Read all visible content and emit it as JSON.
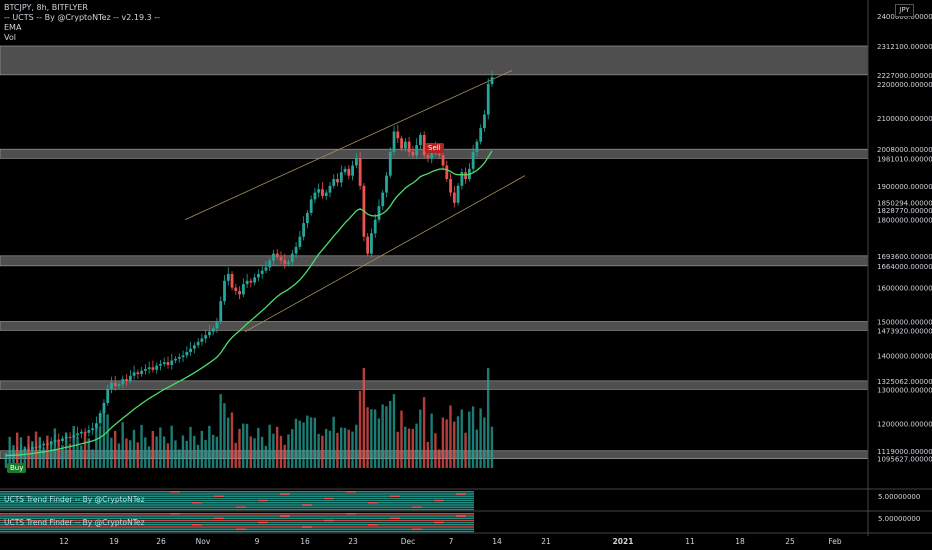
{
  "legend": {
    "symbol": "BTCJPY, 8h, BITFLYER",
    "indicator1": "-- UCTS -- By @CryptoNTez -- v2.19.3 --",
    "indicator2": "EMA",
    "indicator3": "Vol"
  },
  "currency": "JPY",
  "signals": {
    "sell": "Sell",
    "buy": "Buy"
  },
  "panes": [
    {
      "label": "UCTS Trend Finder -- By @CryptoNTez",
      "value": "5.00000000"
    },
    {
      "label": "UCTS Trend Finder -- By @CryptoNTez",
      "value": "5.00000000"
    }
  ],
  "colors": {
    "up": "#26a69a",
    "down": "#ef5350",
    "ema": "#4cdc6a",
    "zone": "#6a6a6a",
    "channel": "#a89060"
  },
  "chart_data": {
    "type": "candlestick",
    "symbol": "BTCJPY",
    "interval": "8h",
    "exchange": "BITFLYER",
    "y_axis_labels": [
      "2400000.00000000",
      "2312100.00000000",
      "2227000.00000000",
      "2200000.00000000",
      "2100000.00000000",
      "2008000.00000000",
      "1981010.00000000",
      "1900000.00000000",
      "1850294.00000000",
      "1828770.00000000",
      "1800000.00000000",
      "1693600.00000000",
      "1664000.00000000",
      "1600000.00000000",
      "1500000.00000000",
      "1473920.00000000",
      "1400000.00000000",
      "1325062.00000000",
      "1300000.00000000",
      "1200000.00000000",
      "1119000.00000000",
      "1095627.00000000"
    ],
    "x_axis_labels": [
      "12",
      "19",
      "26",
      "Nov",
      "9",
      "16",
      "23",
      "Dec",
      "7",
      "14",
      "21",
      "2021",
      "11",
      "18",
      "25",
      "Feb"
    ],
    "ylim": [
      1080000,
      2430000
    ],
    "support_resistance_zones": [
      [
        2227000,
        2312100
      ],
      [
        1981010,
        2008000
      ],
      [
        1664000,
        1693600
      ],
      [
        1473920,
        1500000
      ],
      [
        1300000,
        1325062
      ],
      [
        1095627,
        1119000
      ]
    ],
    "close_series": [
      1105000,
      1108000,
      1112000,
      1110000,
      1118000,
      1125000,
      1122000,
      1130000,
      1128000,
      1135000,
      1140000,
      1138000,
      1145000,
      1150000,
      1148000,
      1155000,
      1160000,
      1158000,
      1165000,
      1170000,
      1175000,
      1172000,
      1180000,
      1185000,
      1200000,
      1230000,
      1260000,
      1300000,
      1320000,
      1310000,
      1315000,
      1330000,
      1325000,
      1340000,
      1350000,
      1345000,
      1355000,
      1360000,
      1365000,
      1358000,
      1370000,
      1375000,
      1380000,
      1372000,
      1385000,
      1390000,
      1395000,
      1400000,
      1410000,
      1420000,
      1430000,
      1440000,
      1450000,
      1460000,
      1470000,
      1480000,
      1500000,
      1560000,
      1620000,
      1640000,
      1600000,
      1590000,
      1580000,
      1610000,
      1620000,
      1615000,
      1630000,
      1640000,
      1650000,
      1660000,
      1680000,
      1700000,
      1690000,
      1680000,
      1670000,
      1675000,
      1700000,
      1720000,
      1750000,
      1790000,
      1820000,
      1860000,
      1880000,
      1890000,
      1870000,
      1880000,
      1900000,
      1920000,
      1910000,
      1940000,
      1950000,
      1930000,
      1960000,
      1980000,
      1900000,
      1750000,
      1700000,
      1760000,
      1800000,
      1840000,
      1880000,
      1930000,
      2000000,
      2060000,
      2040000,
      2010000,
      2030000,
      2000000,
      1990000,
      2020000,
      2050000,
      1990000,
      1980000,
      2010000,
      1995000,
      1990000,
      1960000,
      1920000,
      1880000,
      1850000,
      1900000,
      1940000,
      1920000,
      1950000,
      2000000,
      2030000,
      2070000,
      2110000,
      2200000,
      2220000
    ],
    "ema_visible": true,
    "volume_visible": true
  }
}
